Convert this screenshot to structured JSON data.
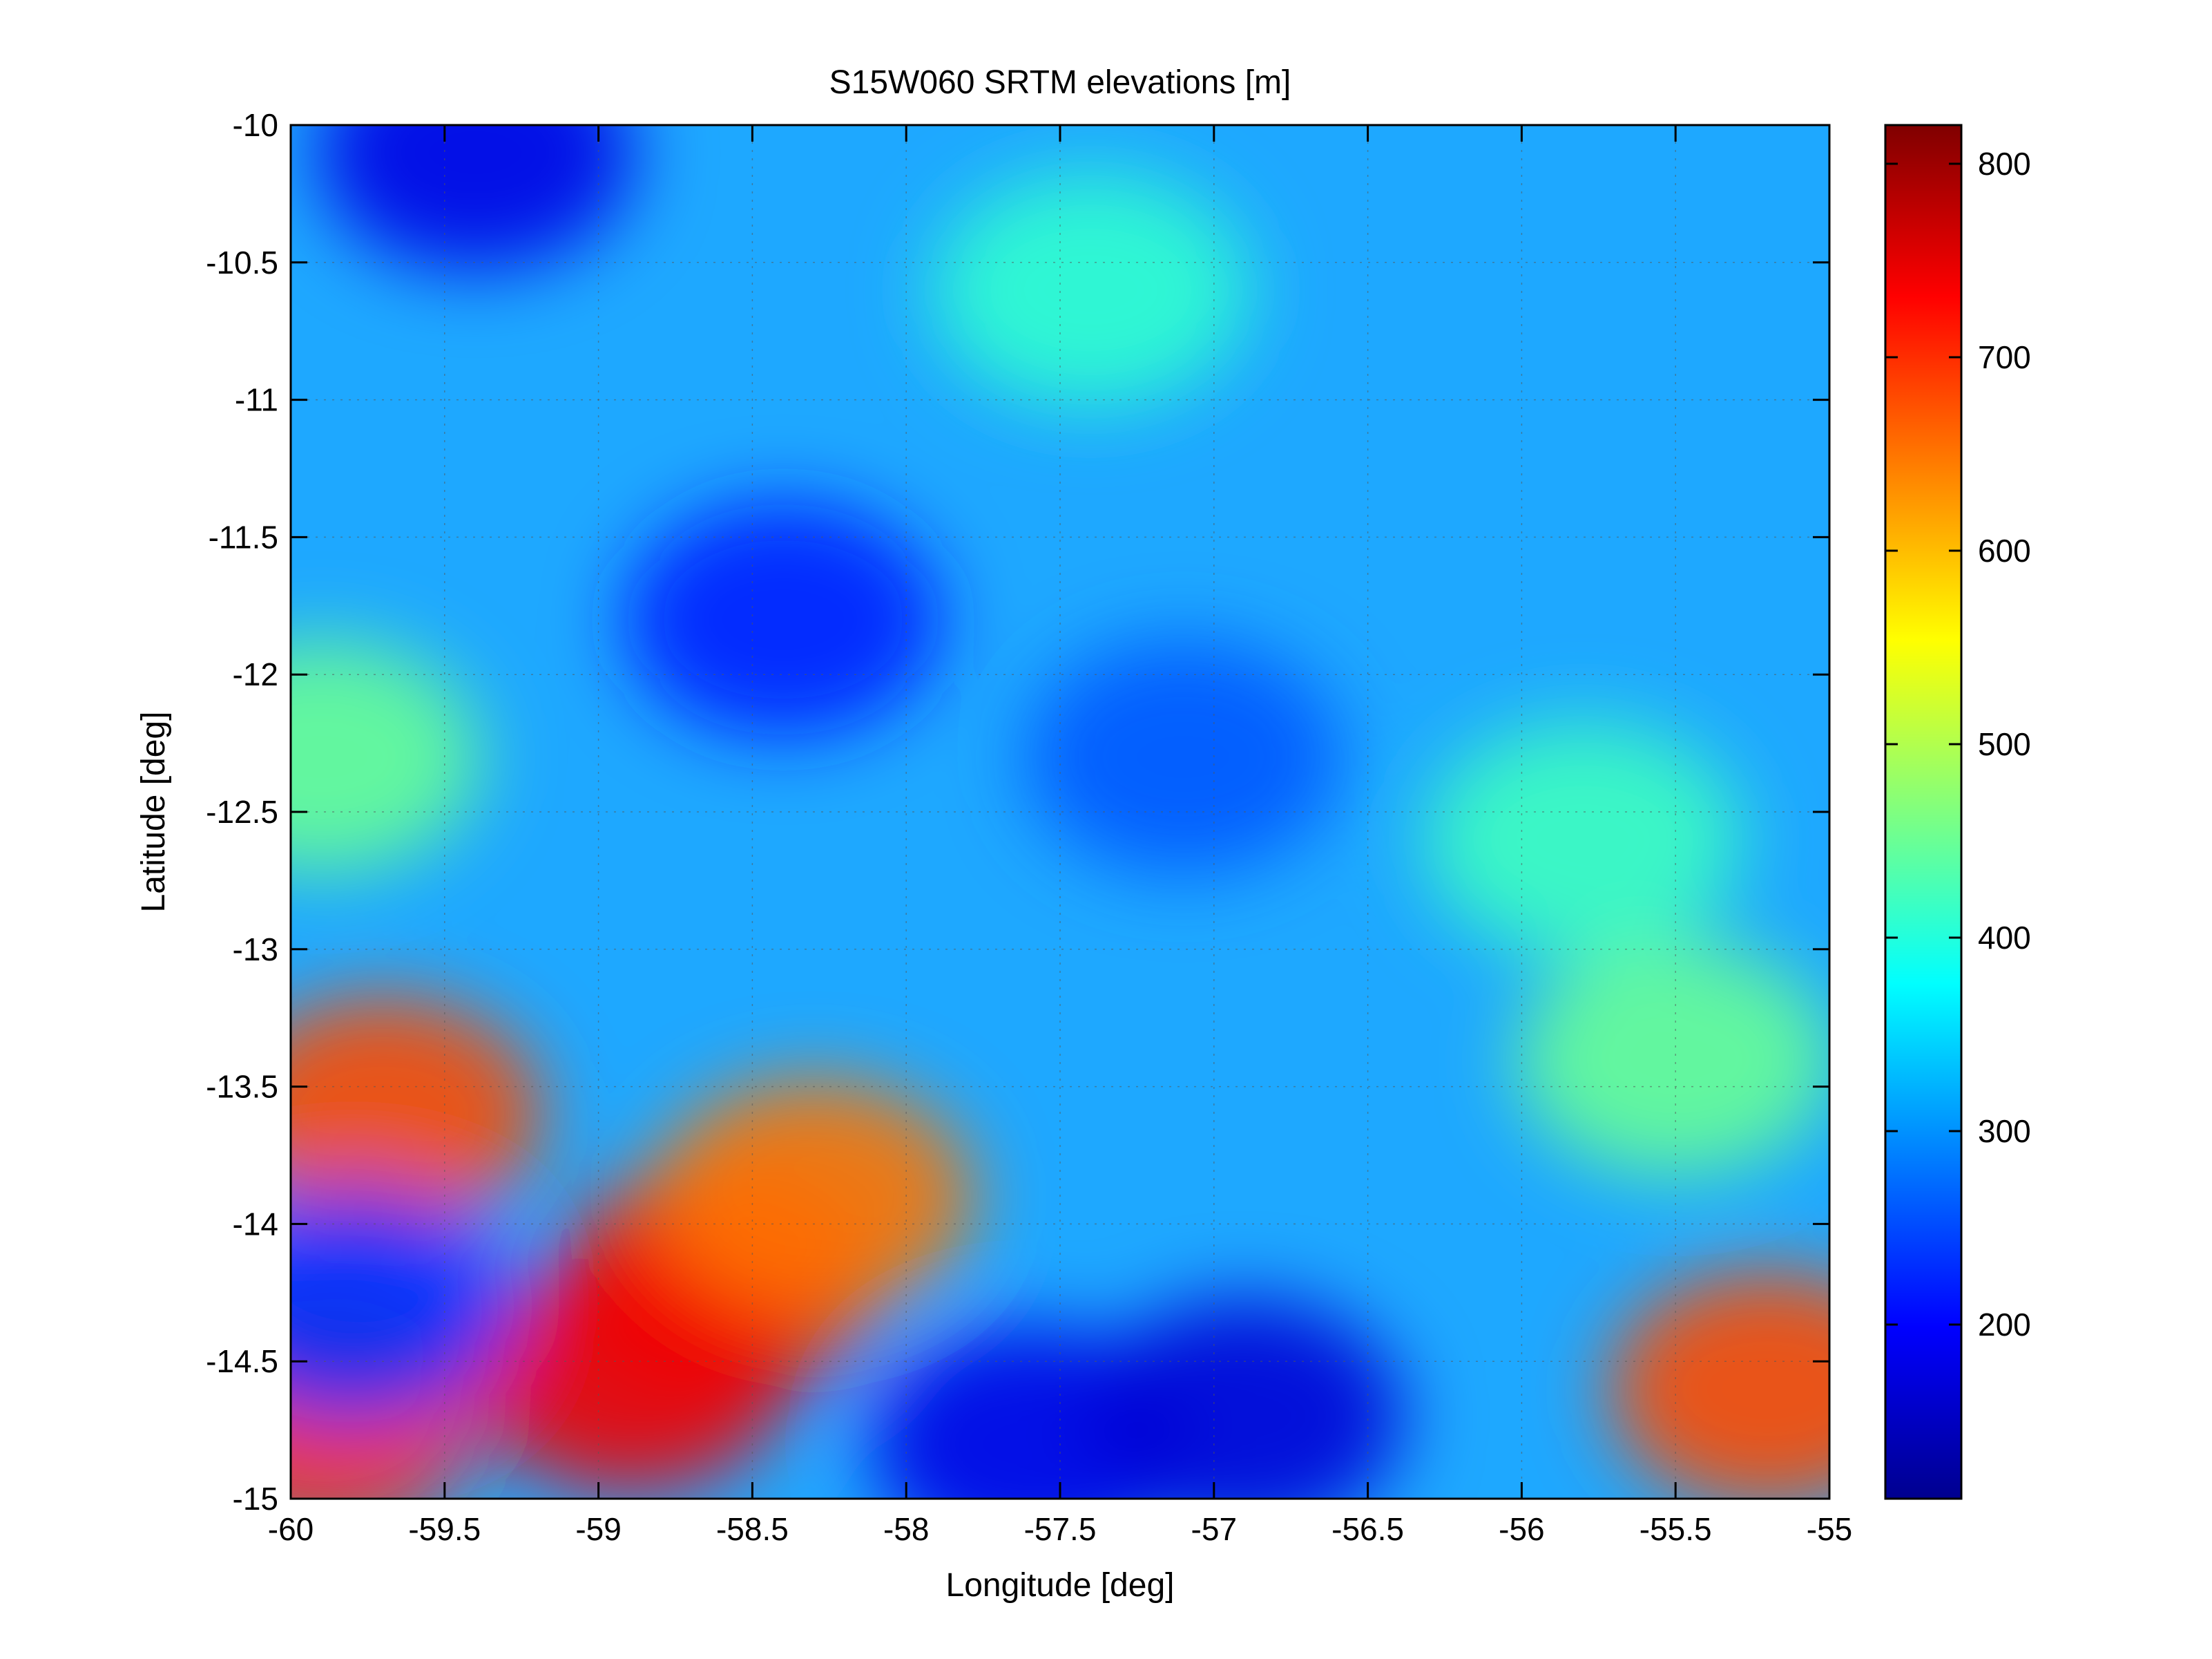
{
  "chart_data": {
    "type": "heatmap",
    "title": "S15W060 SRTM elevations [m]",
    "xlabel": "Longitude [deg]",
    "ylabel": "Latitude [deg]",
    "xlim": [
      -60,
      -55
    ],
    "ylim": [
      -15,
      -10
    ],
    "xticks": [
      -60,
      -59.5,
      -59,
      -58.5,
      -58,
      -57.5,
      -57,
      -56.5,
      -56,
      -55.5,
      -55
    ],
    "yticks": [
      -10,
      -10.5,
      -11,
      -11.5,
      -12,
      -12.5,
      -13,
      -13.5,
      -14,
      -14.5,
      -15
    ],
    "grid": true,
    "colormap": "jet",
    "colorbar": {
      "range": [
        110,
        820
      ],
      "ticks": [
        200,
        300,
        400,
        500,
        600,
        700,
        800
      ]
    },
    "regions": [
      {
        "lon": -58.6,
        "lat": -14.2,
        "elev": 720
      },
      {
        "lon": -58.9,
        "lat": -14.55,
        "elev": 740
      },
      {
        "lon": -58.3,
        "lat": -13.9,
        "elev": 650
      },
      {
        "lon": -59.7,
        "lat": -13.6,
        "elev": 680
      },
      {
        "lon": -59.9,
        "lat": -14.7,
        "elev": 700
      },
      {
        "lon": -55.2,
        "lat": -14.6,
        "elev": 680
      },
      {
        "lon": -57.6,
        "lat": -14.8,
        "elev": 180
      },
      {
        "lon": -56.9,
        "lat": -14.7,
        "elev": 170
      },
      {
        "lon": -59.8,
        "lat": -14.3,
        "elev": 230
      },
      {
        "lon": -58.4,
        "lat": -11.8,
        "elev": 220
      },
      {
        "lon": -57.1,
        "lat": -12.3,
        "elev": 260
      },
      {
        "lon": -59.4,
        "lat": -10.1,
        "elev": 180
      },
      {
        "lon": -57.4,
        "lat": -10.6,
        "elev": 410
      },
      {
        "lon": -55.8,
        "lat": -12.6,
        "elev": 420
      },
      {
        "lon": -55.5,
        "lat": -13.4,
        "elev": 450
      },
      {
        "lon": -59.9,
        "lat": -12.3,
        "elev": 450
      }
    ]
  }
}
